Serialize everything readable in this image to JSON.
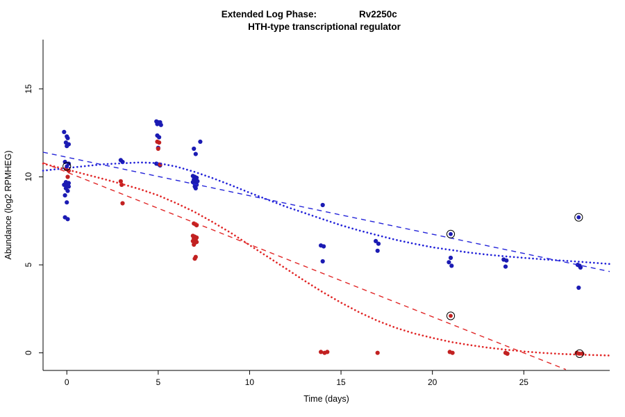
{
  "header": {
    "title_left": "Extended Log Phase:",
    "title_right": "Rv2250c",
    "subtitle": "HTH-type transcriptional regulator"
  },
  "chart_data": {
    "type": "scatter",
    "title": "Extended Log Phase: Rv2250c",
    "subtitle": "HTH-type transcriptional regulator",
    "xlabel": "Time  (days)",
    "ylabel": "Abundance  (log2 RPMHEG)",
    "xlim": [
      -1.3,
      29.7
    ],
    "ylim": [
      -1.0,
      17.8
    ],
    "xticks": [
      0,
      5,
      10,
      15,
      20,
      25
    ],
    "yticks": [
      0,
      5,
      10,
      15
    ],
    "grid": false,
    "legend": "none",
    "colors": {
      "point_blue": "#1b1bb3",
      "point_red": "#c22121",
      "line_blue": "#2323d9",
      "line_red": "#e12727",
      "ring": "#000000"
    },
    "series": [
      {
        "name": "blue-points",
        "type": "points",
        "color": "point_blue",
        "points": [
          [
            -0.15,
            12.55
          ],
          [
            0.0,
            12.3
          ],
          [
            0.05,
            12.2
          ],
          [
            -0.05,
            11.95
          ],
          [
            0.1,
            11.85
          ],
          [
            0.0,
            11.75
          ],
          [
            -0.1,
            10.85
          ],
          [
            0.1,
            10.75
          ],
          [
            -0.05,
            9.7
          ],
          [
            0.1,
            9.65
          ],
          [
            -0.15,
            9.55
          ],
          [
            0.0,
            9.5
          ],
          [
            0.1,
            9.45
          ],
          [
            -0.05,
            9.35
          ],
          [
            0.05,
            9.2
          ],
          [
            -0.1,
            8.95
          ],
          [
            0.0,
            8.55
          ],
          [
            -0.1,
            7.7
          ],
          [
            0.05,
            7.6
          ],
          [
            2.95,
            10.95
          ],
          [
            3.05,
            10.85
          ],
          [
            4.9,
            13.15
          ],
          [
            5.0,
            13.1
          ],
          [
            5.1,
            13.1
          ],
          [
            5.05,
            13.05
          ],
          [
            4.95,
            13.0
          ],
          [
            5.15,
            12.95
          ],
          [
            4.95,
            12.35
          ],
          [
            5.05,
            12.25
          ],
          [
            5.0,
            11.65
          ],
          [
            4.9,
            10.75
          ],
          [
            5.05,
            10.7
          ],
          [
            5.1,
            10.65
          ],
          [
            7.3,
            12.0
          ],
          [
            6.95,
            11.6
          ],
          [
            7.05,
            11.3
          ],
          [
            6.9,
            10.05
          ],
          [
            7.0,
            10.0
          ],
          [
            7.1,
            9.95
          ],
          [
            6.95,
            9.85
          ],
          [
            7.05,
            9.8
          ],
          [
            7.15,
            9.75
          ],
          [
            6.9,
            9.7
          ],
          [
            7.0,
            9.6
          ],
          [
            7.1,
            9.55
          ],
          [
            7.0,
            9.45
          ],
          [
            7.05,
            9.35
          ],
          [
            14.0,
            8.4
          ],
          [
            13.9,
            6.1
          ],
          [
            14.05,
            6.05
          ],
          [
            14.0,
            5.2
          ],
          [
            16.9,
            6.35
          ],
          [
            17.05,
            6.2
          ],
          [
            17.0,
            5.8
          ],
          [
            21.0,
            5.4
          ],
          [
            20.9,
            5.15
          ],
          [
            21.05,
            4.95
          ],
          [
            23.9,
            5.3
          ],
          [
            24.05,
            5.25
          ],
          [
            24.0,
            4.9
          ],
          [
            27.95,
            5.0
          ],
          [
            28.05,
            4.95
          ],
          [
            28.1,
            4.85
          ],
          [
            28.0,
            3.7
          ]
        ]
      },
      {
        "name": "red-points",
        "type": "points",
        "color": "point_red",
        "points": [
          [
            -0.05,
            10.45
          ],
          [
            0.1,
            10.35
          ],
          [
            0.05,
            10.0
          ],
          [
            2.95,
            9.75
          ],
          [
            3.0,
            9.55
          ],
          [
            3.05,
            8.5
          ],
          [
            4.95,
            12.0
          ],
          [
            5.05,
            11.95
          ],
          [
            5.0,
            11.6
          ],
          [
            5.1,
            10.7
          ],
          [
            6.95,
            7.35
          ],
          [
            7.05,
            7.3
          ],
          [
            7.1,
            7.25
          ],
          [
            6.9,
            6.65
          ],
          [
            7.0,
            6.6
          ],
          [
            7.1,
            6.55
          ],
          [
            6.95,
            6.5
          ],
          [
            7.05,
            6.45
          ],
          [
            7.0,
            6.4
          ],
          [
            6.9,
            6.35
          ],
          [
            7.1,
            6.3
          ],
          [
            7.0,
            6.25
          ],
          [
            6.95,
            6.15
          ],
          [
            7.05,
            5.45
          ],
          [
            7.0,
            5.35
          ],
          [
            13.9,
            0.05
          ],
          [
            14.1,
            0.0
          ],
          [
            14.25,
            0.05
          ],
          [
            17.0,
            0.0
          ],
          [
            20.95,
            0.05
          ],
          [
            21.1,
            0.0
          ],
          [
            24.0,
            0.0
          ],
          [
            24.1,
            -0.05
          ],
          [
            27.9,
            0.0
          ],
          [
            28.2,
            -0.05
          ]
        ]
      },
      {
        "name": "fit-blue-dashed",
        "type": "line",
        "color": "line_blue",
        "dash": "7 6",
        "width": 1.4,
        "points": [
          [
            -1.3,
            11.4
          ],
          [
            29.7,
            4.62
          ]
        ]
      },
      {
        "name": "fit-red-dashed",
        "type": "line",
        "color": "line_red",
        "dash": "7 6",
        "width": 1.4,
        "points": [
          [
            -1.3,
            10.8
          ],
          [
            27.3,
            -0.95
          ]
        ]
      },
      {
        "name": "fit-blue-dotted",
        "type": "line",
        "color": "line_blue",
        "dash": "0.1 5.4",
        "width": 2.7,
        "cap": "round",
        "points": [
          [
            -1.3,
            10.35
          ],
          [
            0,
            10.5
          ],
          [
            2,
            10.72
          ],
          [
            4,
            10.82
          ],
          [
            5,
            10.78
          ],
          [
            6,
            10.58
          ],
          [
            7,
            10.28
          ],
          [
            8,
            9.92
          ],
          [
            9,
            9.52
          ],
          [
            10,
            9.1
          ],
          [
            11,
            8.7
          ],
          [
            12,
            8.3
          ],
          [
            13,
            7.95
          ],
          [
            14,
            7.6
          ],
          [
            15,
            7.25
          ],
          [
            16,
            6.95
          ],
          [
            17,
            6.68
          ],
          [
            18,
            6.42
          ],
          [
            19,
            6.2
          ],
          [
            20,
            6.0
          ],
          [
            21,
            5.85
          ],
          [
            22,
            5.7
          ],
          [
            23,
            5.58
          ],
          [
            24,
            5.48
          ],
          [
            25,
            5.4
          ],
          [
            26,
            5.32
          ],
          [
            27,
            5.25
          ],
          [
            28,
            5.18
          ],
          [
            29.7,
            5.05
          ]
        ]
      },
      {
        "name": "fit-red-dotted",
        "type": "line",
        "color": "line_red",
        "dash": "0.1 5.4",
        "width": 2.7,
        "cap": "round",
        "points": [
          [
            -1.3,
            10.75
          ],
          [
            0,
            10.42
          ],
          [
            1,
            10.15
          ],
          [
            2,
            9.88
          ],
          [
            3,
            9.6
          ],
          [
            4,
            9.3
          ],
          [
            5,
            8.95
          ],
          [
            6,
            8.5
          ],
          [
            7,
            8.0
          ],
          [
            8,
            7.42
          ],
          [
            9,
            6.8
          ],
          [
            10,
            6.12
          ],
          [
            11,
            5.45
          ],
          [
            12,
            4.78
          ],
          [
            13,
            4.1
          ],
          [
            14,
            3.45
          ],
          [
            15,
            2.85
          ],
          [
            16,
            2.3
          ],
          [
            17,
            1.82
          ],
          [
            18,
            1.42
          ],
          [
            19,
            1.1
          ],
          [
            20,
            0.85
          ],
          [
            21,
            0.62
          ],
          [
            22,
            0.45
          ],
          [
            23,
            0.3
          ],
          [
            24,
            0.18
          ],
          [
            25,
            0.08
          ],
          [
            26,
            0.0
          ],
          [
            27,
            -0.06
          ],
          [
            28,
            -0.1
          ],
          [
            29.7,
            -0.15
          ]
        ]
      },
      {
        "name": "flagged-points",
        "type": "circled-points",
        "points": [
          {
            "x": 0.0,
            "y": 10.6,
            "color": "point_blue"
          },
          {
            "x": 21.0,
            "y": 6.75,
            "color": "point_blue"
          },
          {
            "x": 28.0,
            "y": 7.7,
            "color": "point_blue"
          },
          {
            "x": 21.0,
            "y": 2.1,
            "color": "point_red"
          },
          {
            "x": 28.05,
            "y": -0.05,
            "color": "point_red"
          }
        ]
      }
    ]
  }
}
